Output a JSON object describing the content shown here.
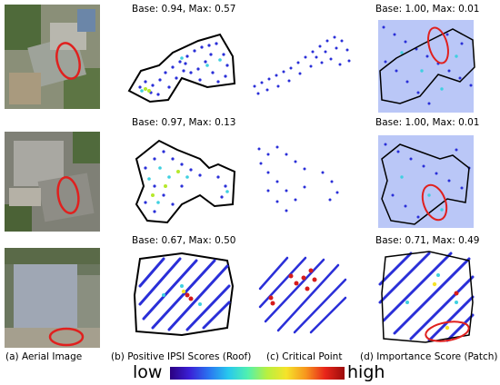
{
  "colors": {
    "point_low": "#2a2fd8",
    "point_high": "#d61b1b",
    "highlight_ellipse": "#e0201e",
    "outline": "#000000"
  },
  "rows": [
    {
      "ipsi_score": "Base: 0.94, Max: 0.57",
      "importance_score": "Base: 1.00, Max: 0.01"
    },
    {
      "ipsi_score": "Base: 0.97, Max: 0.13",
      "importance_score": "Base: 1.00, Max: 0.01"
    },
    {
      "ipsi_score": "Base: 0.67, Max: 0.50",
      "importance_score": "Base: 0.71, Max: 0.49"
    }
  ],
  "captions": {
    "a": "(a) Aerial Image",
    "b": "(b) Positive IPSI Scores (Roof)",
    "c": "(c) Critical Point",
    "d": "(d) Importance Score (Patch)"
  },
  "colorbar": {
    "low": "low",
    "high": "high"
  }
}
